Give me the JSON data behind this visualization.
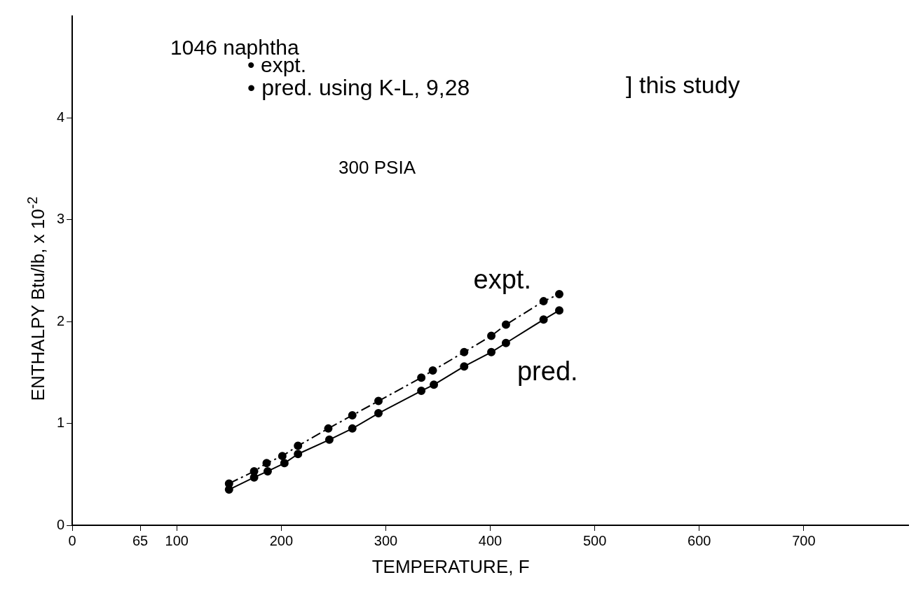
{
  "chart_data": {
    "type": "line",
    "xlabel": "TEMPERATURE, F",
    "ylabel": "ENTHALPY Btu/lb, x 10$^{-2}$",
    "annotations": [
      "1046 naphtha",
      "• expt.",
      "• pred. using K-L, 9,28",
      "] this study",
      "300 PSIA"
    ],
    "xlim": [
      0,
      800
    ],
    "xticks": [
      0,
      65,
      100,
      200,
      300,
      400,
      500,
      600,
      700
    ],
    "ylim": [
      0,
      5
    ],
    "yticks": [
      0,
      1,
      2,
      3,
      4
    ],
    "grid": false,
    "legend": false,
    "marker": "circle",
    "series": [
      {
        "name": "expt.",
        "color": "#000000",
        "line_style": "dashed",
        "x": [
          150,
          174,
          186,
          201,
          216,
          245,
          268,
          293,
          334,
          345,
          375,
          401,
          415,
          451,
          466
        ],
        "values": [
          0.41,
          0.53,
          0.61,
          0.68,
          0.78,
          0.95,
          1.08,
          1.22,
          1.45,
          1.52,
          1.7,
          1.86,
          1.97,
          2.2,
          2.27
        ]
      },
      {
        "name": "pred.",
        "color": "#000000",
        "line_style": "solid",
        "x": [
          150,
          174,
          187,
          203,
          216,
          246,
          268,
          293,
          334,
          346,
          375,
          401,
          415,
          451,
          466
        ],
        "values": [
          0.35,
          0.47,
          0.53,
          0.61,
          0.7,
          0.84,
          0.95,
          1.1,
          1.32,
          1.38,
          1.56,
          1.7,
          1.79,
          2.02,
          2.11
        ]
      }
    ]
  }
}
